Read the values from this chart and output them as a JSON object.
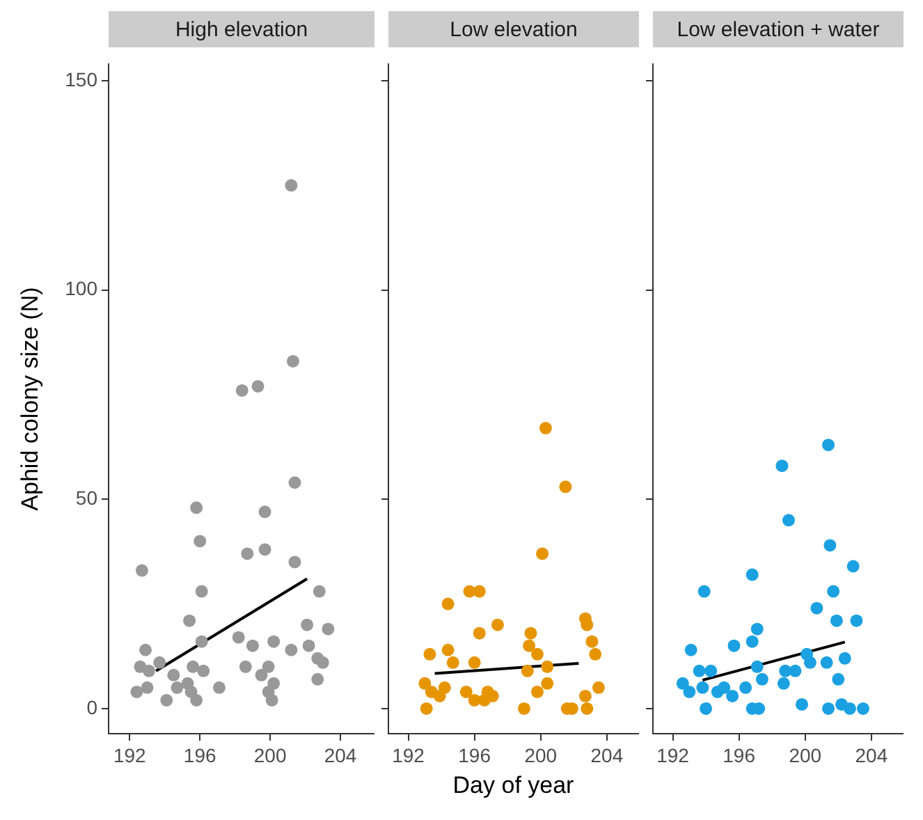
{
  "chart_data": [
    {
      "type": "scatter",
      "title": "High elevation",
      "ylabel": "Aphid colony size (N)",
      "xlim": [
        190.8,
        205.9
      ],
      "ylim": [
        -6,
        154
      ],
      "xticks": [
        192,
        196,
        200,
        204
      ],
      "yticks": [
        0,
        50,
        100,
        150
      ],
      "grid": false,
      "series": [
        {
          "color": "#999999",
          "marker": "circle",
          "x": [
            201.2,
            201.3,
            198.4,
            199.3,
            201.4,
            195.8,
            199.7,
            196.0,
            198.7,
            199.7,
            201.4,
            192.7,
            196.1,
            202.8,
            195.4,
            202.1,
            203.3,
            196.1,
            198.2,
            199.0,
            200.2,
            201.2,
            202.2,
            202.7,
            203.0,
            202.7,
            192.9,
            192.6,
            193.1,
            192.4,
            193.0,
            193.7,
            194.5,
            194.1,
            195.6,
            196.2,
            195.3,
            194.7,
            195.8,
            195.5,
            197.1,
            198.6,
            199.9,
            199.5,
            200.2,
            199.9,
            200.1
          ],
          "values": [
            125,
            83,
            76,
            77,
            54,
            48,
            47,
            40,
            37,
            38,
            35,
            33,
            28,
            28,
            21,
            20,
            19,
            16,
            17,
            15,
            16,
            14,
            15,
            12,
            11,
            7,
            14,
            10,
            9,
            4,
            5,
            11,
            8,
            2,
            10,
            9,
            6,
            5,
            2,
            4,
            5,
            10,
            10,
            8,
            6,
            4,
            2
          ]
        },
        {
          "type": "line",
          "color": "#000000",
          "marker": "none",
          "x": [
            193.5,
            202.1
          ],
          "values": [
            9,
            31
          ]
        }
      ]
    },
    {
      "type": "scatter",
      "title": "Low elevation",
      "xlabel": "Day of year",
      "tick_labels": "x",
      "xlim": [
        190.8,
        205.9
      ],
      "ylim": [
        -6,
        154
      ],
      "xticks": [
        192,
        196,
        200,
        204
      ],
      "yticks": [
        0,
        50,
        100,
        150
      ],
      "grid": false,
      "series": [
        {
          "color": "#e69500",
          "marker": "circle",
          "x": [
            200.3,
            201.5,
            200.1,
            195.7,
            196.3,
            194.4,
            197.4,
            196.3,
            199.4,
            202.7,
            202.8,
            203.1,
            203.3,
            199.3,
            199.8,
            193.3,
            194.4,
            194.7,
            196.0,
            200.4,
            199.2,
            193.0,
            193.4,
            194.2,
            193.9,
            193.1,
            195.5,
            196.0,
            196.8,
            197.1,
            196.6,
            200.4,
            199.8,
            199.0,
            201.6,
            201.9,
            202.7,
            203.5,
            202.8
          ],
          "values": [
            67,
            53,
            37,
            28,
            28,
            25,
            20,
            18,
            18,
            21.5,
            20,
            16,
            13,
            15,
            13,
            13,
            14,
            11,
            11,
            10,
            9,
            6,
            4,
            5,
            3,
            0,
            4,
            2,
            4,
            3,
            2,
            6,
            4,
            0,
            0,
            0,
            3,
            5,
            0
          ]
        },
        {
          "type": "line",
          "color": "#000000",
          "marker": "none",
          "x": [
            193.6,
            202.3
          ],
          "values": [
            8.4,
            10.8
          ]
        }
      ]
    },
    {
      "type": "scatter",
      "title": "Low elevation + water",
      "tick_labels": "x",
      "xlim": [
        190.8,
        205.9
      ],
      "ylim": [
        -6,
        154
      ],
      "xticks": [
        192,
        196,
        200,
        204
      ],
      "yticks": [
        0,
        50,
        100,
        150
      ],
      "grid": false,
      "series": [
        {
          "color": "#1ba1e2",
          "marker": "circle",
          "x": [
            201.4,
            198.6,
            199.0,
            201.5,
            202.9,
            196.8,
            193.9,
            201.7,
            200.7,
            201.9,
            203.1,
            197.1,
            196.8,
            195.7,
            193.1,
            200.1,
            200.3,
            201.3,
            202.4,
            197.1,
            198.8,
            199.4,
            197.4,
            202.0,
            192.6,
            193.6,
            194.3,
            193.0,
            193.8,
            194.7,
            195.6,
            196.4,
            198.7,
            194.0,
            196.8,
            197.2,
            199.8,
            201.4,
            202.2,
            202.7,
            203.5,
            195.1
          ],
          "values": [
            63,
            58,
            45,
            39,
            34,
            32,
            28,
            28,
            24,
            21,
            21,
            19,
            16,
            15,
            14,
            13,
            11,
            11,
            12,
            10,
            9,
            9,
            7,
            7,
            6,
            9,
            9,
            4,
            5,
            4,
            3,
            5,
            6,
            0,
            0,
            0,
            1,
            0,
            1,
            0,
            0,
            5
          ]
        },
        {
          "type": "line",
          "color": "#000000",
          "marker": "none",
          "x": [
            193.8,
            202.4
          ],
          "values": [
            6.8,
            15.9
          ]
        }
      ]
    }
  ]
}
